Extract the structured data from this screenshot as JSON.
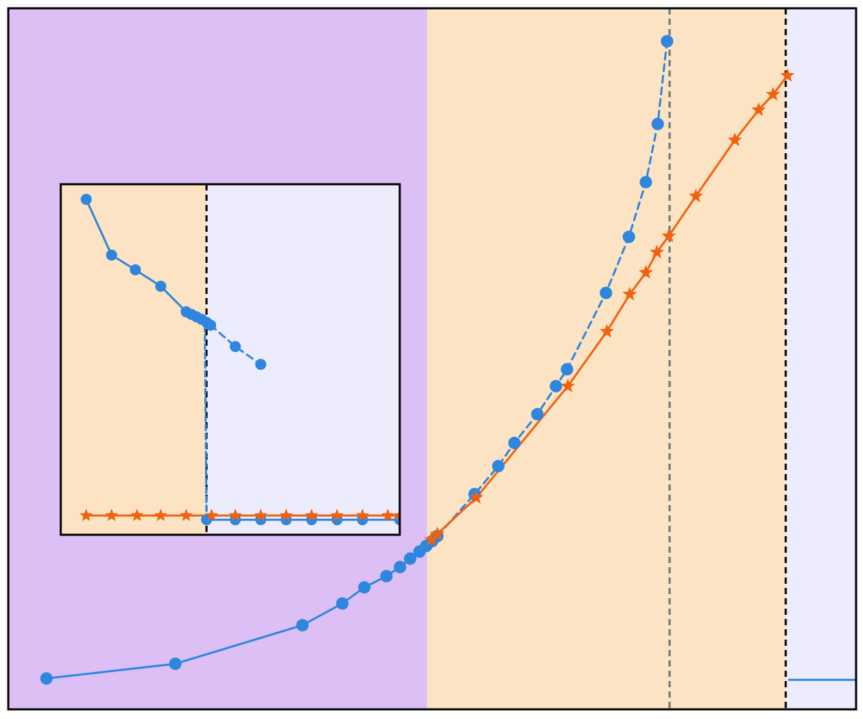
{
  "chart_data": [
    {
      "type": "line",
      "title": "",
      "xlabel": "",
      "ylabel": "",
      "axis_ticks_visible": false,
      "legend": "none",
      "grid": false,
      "xlim": [
        0,
        1000
      ],
      "ylim": [
        0,
        1000
      ],
      "background_regions": [
        {
          "name": "region-a",
          "x_start": 0,
          "x_end": 494,
          "color": "#dcbff5"
        },
        {
          "name": "region-b",
          "x_start": 494,
          "x_end": 917,
          "color": "#fce3c3"
        },
        {
          "name": "region-c",
          "x_start": 917,
          "x_end": 1000,
          "color": "#ececfc"
        }
      ],
      "vertical_lines": [
        {
          "name": "gray-dashed-line",
          "x": 780,
          "color": "#66757a"
        },
        {
          "name": "black-dashed-line",
          "x": 917,
          "color": "#000000"
        }
      ],
      "series": [
        {
          "key": "blue",
          "color": "#2e86de",
          "marker": "circle",
          "x": [
            45,
            197,
            347,
            394,
            420,
            446,
            462,
            474,
            485,
            493,
            500,
            506
          ],
          "y": [
            44,
            65,
            120,
            151,
            174,
            190,
            203,
            215,
            225,
            233,
            240,
            247
          ]
        },
        {
          "key": "blue-dashed",
          "color": "#2e86de",
          "marker": "circle",
          "x": [
            506,
            550,
            578,
            597,
            624,
            646,
            659,
            705,
            732,
            752,
            766,
            777
          ],
          "y": [
            247,
            307,
            347,
            380,
            421,
            461,
            485,
            594,
            674,
            752,
            835,
            953
          ]
        },
        {
          "key": "orange",
          "color": "#f2610d",
          "marker": "star",
          "x": [
            499,
            506,
            552,
            660,
            706,
            733,
            752,
            765,
            779,
            811,
            857,
            885,
            902,
            919
          ],
          "y": [
            242,
            250,
            302,
            461,
            539,
            592,
            623,
            652,
            675,
            732,
            812,
            855,
            877,
            904
          ]
        },
        {
          "key": "blue-flat",
          "color": "#2e86de",
          "marker": "none",
          "x": [
            921,
            1000
          ],
          "y": [
            42,
            42
          ]
        }
      ]
    },
    {
      "type": "line",
      "name": "inset",
      "title": "",
      "xlabel": "",
      "ylabel": "",
      "axis_ticks_visible": false,
      "legend": "none",
      "grid": false,
      "xlim": [
        0,
        100
      ],
      "ylim": [
        0,
        100
      ],
      "background_regions": [
        {
          "name": "inset-region-left",
          "x_start": 0,
          "x_end": 43,
          "color": "#fce3c3"
        },
        {
          "name": "inset-region-right",
          "x_start": 43,
          "x_end": 100,
          "color": "#ececfc"
        }
      ],
      "vertical_lines": [
        {
          "name": "inset-black-dashed-line",
          "x": 43,
          "color": "#000000"
        }
      ],
      "series": [
        {
          "key": "blue",
          "color": "#2e86de",
          "marker": "circle",
          "x": [
            7.5,
            15,
            22,
            29.5,
            37,
            38.5,
            40,
            41.5,
            43,
            44.2
          ],
          "y": [
            95.7,
            79.8,
            75.6,
            70.9,
            63.6,
            62.9,
            62.2,
            61.5,
            60.6,
            59.8
          ]
        },
        {
          "key": "blue-dashed",
          "color": "#2e86de",
          "marker": "circle",
          "x": [
            44.2,
            51.5,
            59
          ],
          "y": [
            59.8,
            53.7,
            48.6
          ]
        },
        {
          "key": "blue-drop",
          "color": "#2e86de",
          "marker": "none",
          "x": [
            42.5,
            43
          ],
          "y": [
            59.5,
            4.3
          ]
        },
        {
          "key": "blue-bottom",
          "color": "#2e86de",
          "marker": "circle",
          "x": [
            43,
            51.5,
            59,
            66.5,
            74,
            81.5,
            89,
            100
          ],
          "y": [
            4.3,
            4.3,
            4.3,
            4.3,
            4.3,
            4.3,
            4.3,
            4.3
          ]
        },
        {
          "key": "orange",
          "color": "#f2610d",
          "marker": "star",
          "x": [
            7.5,
            15,
            22.5,
            29.5,
            37,
            44.5,
            51.5,
            59,
            66.5,
            74,
            81.5,
            89,
            96.5,
            100
          ],
          "y": [
            5.5,
            5.5,
            5.5,
            5.5,
            5.5,
            5.5,
            5.5,
            5.5,
            5.5,
            5.5,
            5.5,
            5.5,
            5.5,
            5.5
          ]
        }
      ]
    }
  ]
}
